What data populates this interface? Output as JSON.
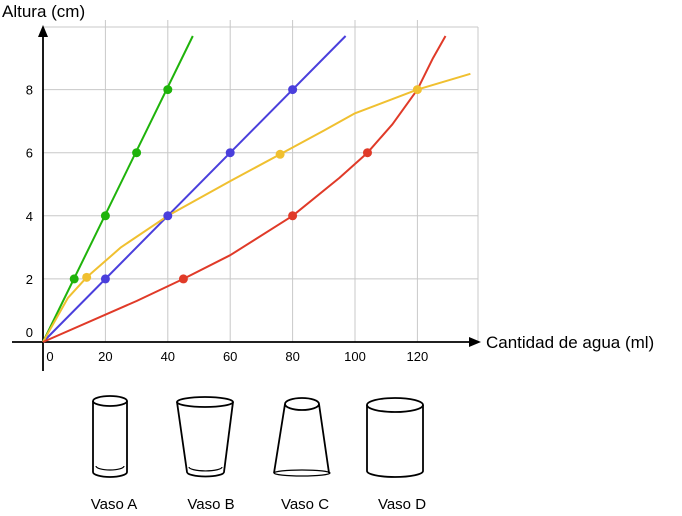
{
  "chart_data": {
    "type": "line",
    "ylabel": "Altura (cm)",
    "xlabel": "Cantidad de agua (ml)",
    "xlim": [
      0,
      140
    ],
    "ylim": [
      0,
      10
    ],
    "x_ticks": [
      "0",
      "20",
      "40",
      "60",
      "80",
      "100",
      "120"
    ],
    "y_ticks": [
      "0",
      "2",
      "4",
      "6",
      "8"
    ],
    "grid": true,
    "series": [
      {
        "color": "#1fb30b",
        "points": [
          [
            0,
            0
          ],
          [
            48,
            9.7
          ]
        ],
        "markers": [
          [
            10,
            2
          ],
          [
            20,
            4
          ],
          [
            30,
            6
          ],
          [
            40,
            8
          ]
        ]
      },
      {
        "color": "#4a3fdc",
        "points": [
          [
            0,
            0
          ],
          [
            97,
            9.7
          ]
        ],
        "markers": [
          [
            20,
            2
          ],
          [
            40,
            4
          ],
          [
            60,
            6
          ],
          [
            80,
            8
          ]
        ]
      },
      {
        "color": "#f0c030",
        "points": [
          [
            0,
            0
          ],
          [
            8,
            1.4
          ],
          [
            14,
            2.05
          ],
          [
            25,
            3.0
          ],
          [
            40,
            4.0
          ],
          [
            60,
            5.1
          ],
          [
            76,
            5.95
          ],
          [
            90,
            6.7
          ],
          [
            100,
            7.25
          ],
          [
            120,
            8.0
          ],
          [
            137,
            8.5
          ]
        ],
        "markers": [
          [
            14,
            2.05
          ],
          [
            76,
            5.95
          ],
          [
            120,
            8.0
          ]
        ]
      },
      {
        "color": "#e03a28",
        "points": [
          [
            0,
            0
          ],
          [
            30,
            1.3
          ],
          [
            45,
            2.0
          ],
          [
            60,
            2.75
          ],
          [
            80,
            4.0
          ],
          [
            95,
            5.2
          ],
          [
            104,
            6.0
          ],
          [
            112,
            6.9
          ],
          [
            120,
            8.0
          ],
          [
            125,
            9.0
          ],
          [
            129,
            9.7
          ]
        ],
        "markers": [
          [
            45,
            2.0
          ],
          [
            80,
            4.0
          ],
          [
            104,
            6.0
          ]
        ]
      }
    ]
  },
  "glasses": [
    {
      "label": "Vaso A",
      "icon": "cylinder-narrow-icon"
    },
    {
      "label": "Vaso B",
      "icon": "cup-wide-top-icon"
    },
    {
      "label": "Vaso C",
      "icon": "cup-wide-bottom-icon"
    },
    {
      "label": "Vaso D",
      "icon": "cylinder-wide-icon"
    }
  ]
}
